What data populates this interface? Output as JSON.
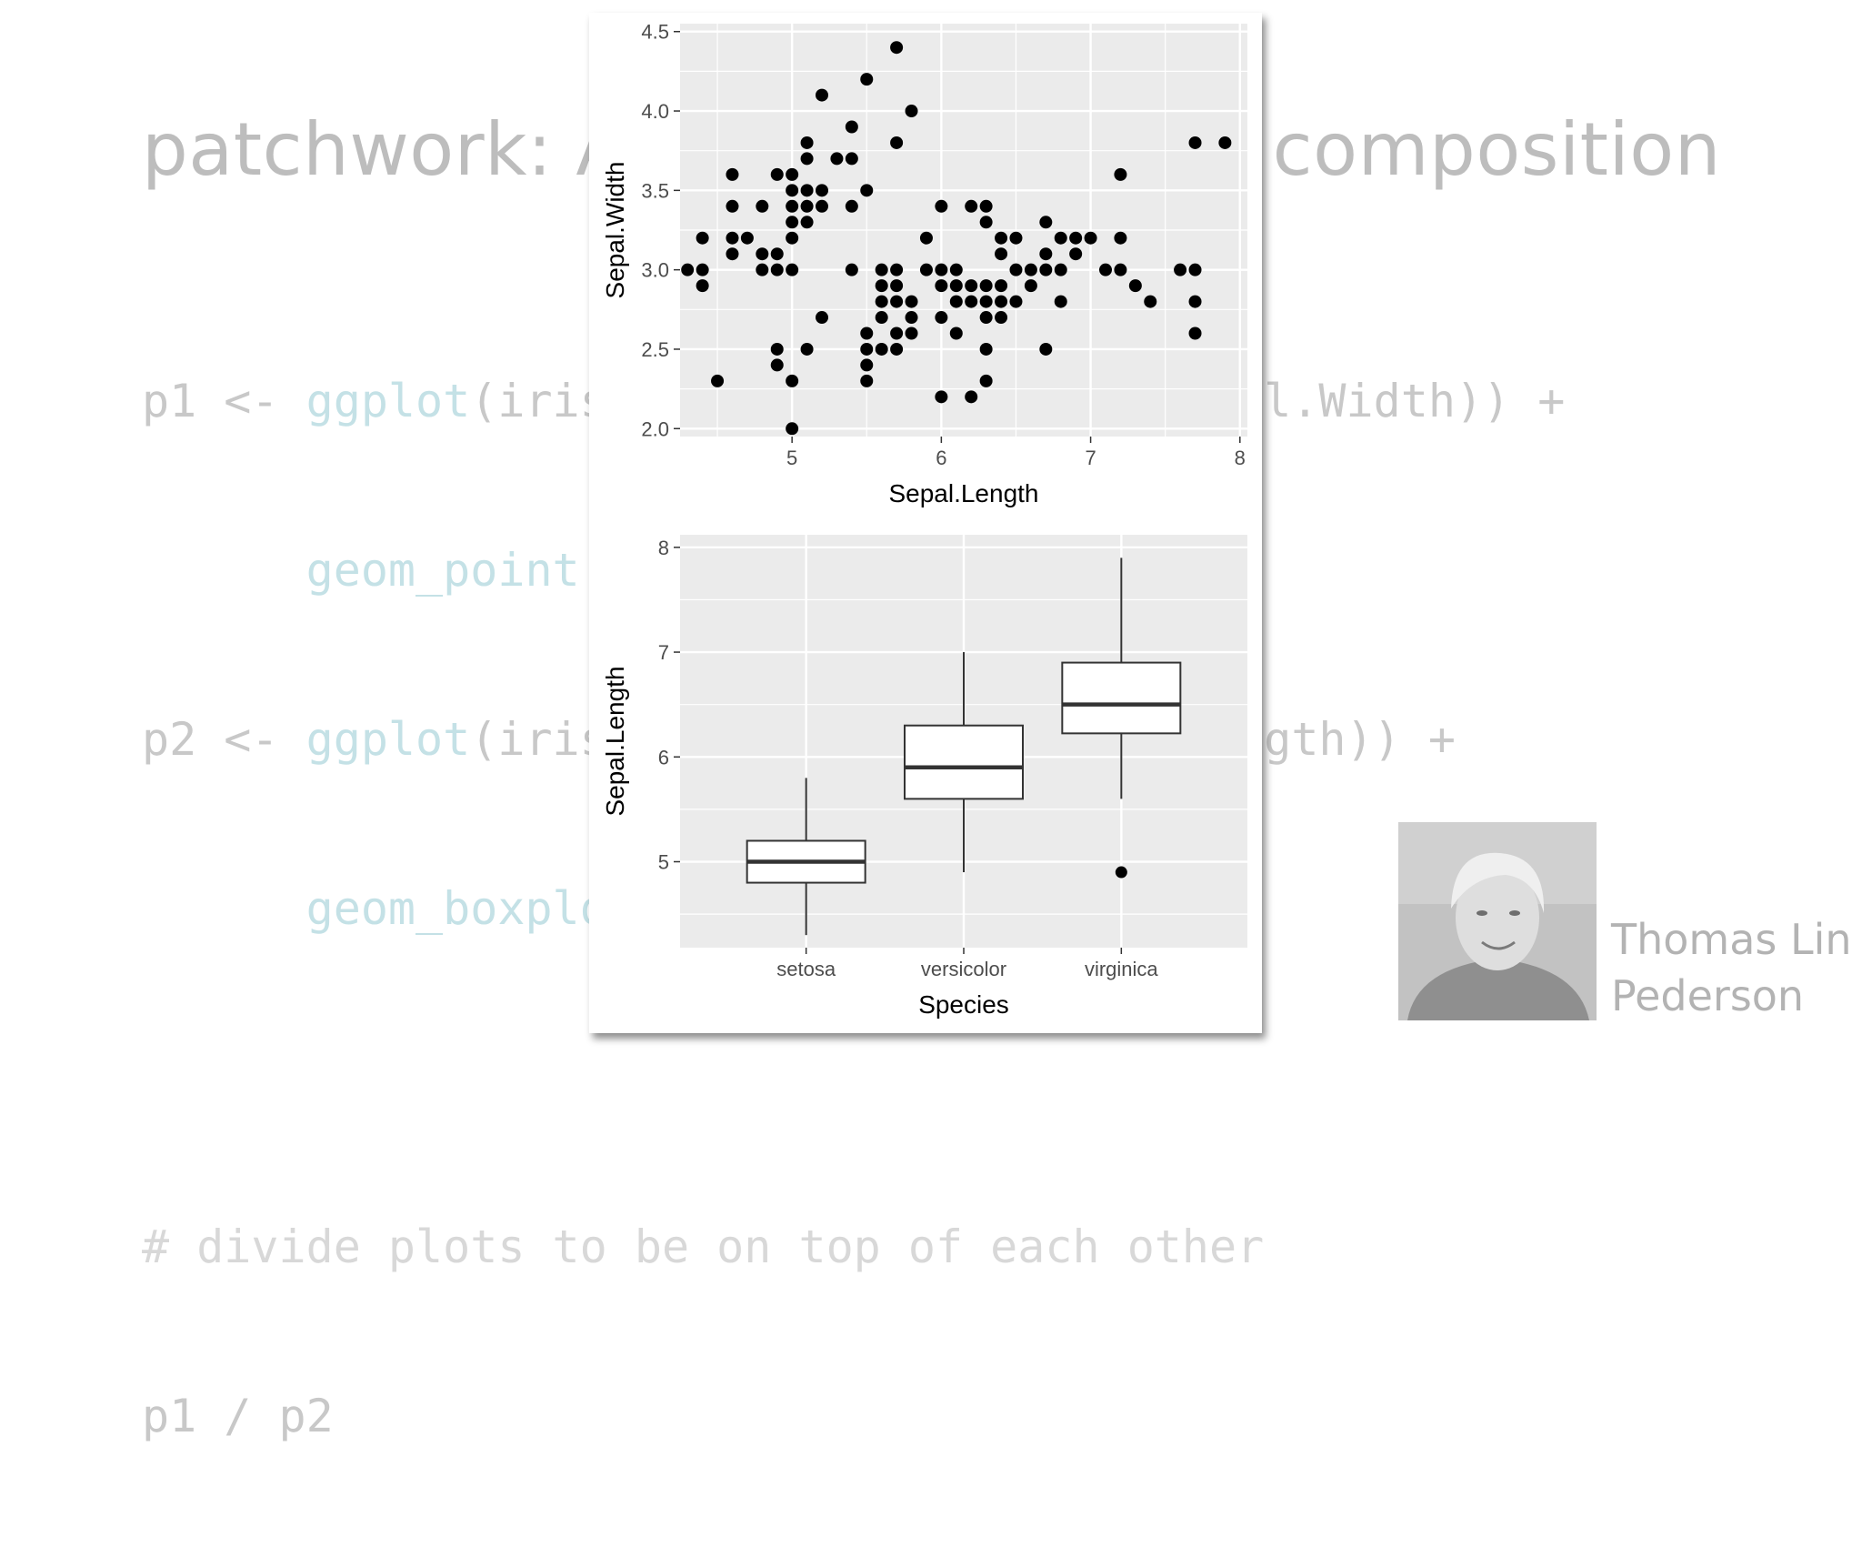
{
  "slide": {
    "title": "patchwork: A grammar of plot composition",
    "code": {
      "l1_a": "p1 <- ",
      "l1_fn": "ggplot",
      "l1_b": "(iris, aes(Sepal.Length, Sepal.Width)) +",
      "l2_fn": "geom_point",
      "l2_b": "()",
      "l3_a": "p2 <- ",
      "l3_fn": "ggplot",
      "l3_b": "(iris, aes(Species, Sepal.Length)) +",
      "l4_fn": "geom_boxplot",
      "l4_b": "()",
      "l5": "# divide plots to be on top of each other",
      "l6": "p1 / p2"
    },
    "author_line1": "Thomas Lin",
    "author_line2": "Pederson"
  },
  "colors": {
    "panel_bg": "#ebebeb",
    "grid": "#ffffff",
    "point": "#000000",
    "box_fill": "#ffffff",
    "box_line": "#333333",
    "axis_text": "#4d4d4d"
  },
  "chart_data": [
    {
      "type": "scatter",
      "xlabel": "Sepal.Length",
      "ylabel": "Sepal.Width",
      "xlim": [
        4.25,
        8.05
      ],
      "ylim": [
        1.95,
        4.55
      ],
      "xticks": [
        5,
        6,
        7,
        8
      ],
      "yticks": [
        2.0,
        2.5,
        3.0,
        3.5,
        4.0,
        4.5
      ],
      "xtick_labels": [
        "5",
        "6",
        "7",
        "8"
      ],
      "ytick_labels": [
        "2.0",
        "2.5",
        "3.0",
        "3.5",
        "4.0",
        "4.5"
      ],
      "grid": true,
      "points": [
        [
          4.3,
          3.0
        ],
        [
          4.4,
          2.9
        ],
        [
          4.4,
          3.0
        ],
        [
          4.4,
          3.2
        ],
        [
          4.5,
          2.3
        ],
        [
          4.6,
          3.1
        ],
        [
          4.6,
          3.2
        ],
        [
          4.6,
          3.4
        ],
        [
          4.6,
          3.6
        ],
        [
          4.7,
          3.2
        ],
        [
          4.8,
          3.0
        ],
        [
          4.8,
          3.1
        ],
        [
          4.8,
          3.4
        ],
        [
          4.9,
          2.4
        ],
        [
          4.9,
          2.5
        ],
        [
          4.9,
          3.0
        ],
        [
          4.9,
          3.1
        ],
        [
          4.9,
          3.6
        ],
        [
          5.0,
          2.0
        ],
        [
          5.0,
          2.3
        ],
        [
          5.0,
          3.0
        ],
        [
          5.0,
          3.2
        ],
        [
          5.0,
          3.3
        ],
        [
          5.0,
          3.4
        ],
        [
          5.0,
          3.5
        ],
        [
          5.0,
          3.6
        ],
        [
          5.1,
          2.5
        ],
        [
          5.1,
          3.3
        ],
        [
          5.1,
          3.4
        ],
        [
          5.1,
          3.5
        ],
        [
          5.1,
          3.7
        ],
        [
          5.1,
          3.8
        ],
        [
          5.2,
          2.7
        ],
        [
          5.2,
          3.4
        ],
        [
          5.2,
          3.5
        ],
        [
          5.2,
          4.1
        ],
        [
          5.3,
          3.7
        ],
        [
          5.4,
          3.0
        ],
        [
          5.4,
          3.4
        ],
        [
          5.4,
          3.7
        ],
        [
          5.4,
          3.9
        ],
        [
          5.5,
          2.3
        ],
        [
          5.5,
          2.4
        ],
        [
          5.5,
          2.5
        ],
        [
          5.5,
          2.6
        ],
        [
          5.5,
          3.5
        ],
        [
          5.5,
          4.2
        ],
        [
          5.6,
          2.5
        ],
        [
          5.6,
          2.7
        ],
        [
          5.6,
          2.8
        ],
        [
          5.6,
          2.9
        ],
        [
          5.6,
          3.0
        ],
        [
          5.7,
          2.5
        ],
        [
          5.7,
          2.6
        ],
        [
          5.7,
          2.8
        ],
        [
          5.7,
          2.9
        ],
        [
          5.7,
          3.0
        ],
        [
          5.7,
          3.8
        ],
        [
          5.7,
          4.4
        ],
        [
          5.8,
          2.6
        ],
        [
          5.8,
          2.7
        ],
        [
          5.8,
          2.8
        ],
        [
          5.8,
          4.0
        ],
        [
          5.9,
          3.0
        ],
        [
          5.9,
          3.2
        ],
        [
          6.0,
          2.2
        ],
        [
          6.0,
          2.7
        ],
        [
          6.0,
          2.9
        ],
        [
          6.0,
          3.0
        ],
        [
          6.0,
          3.4
        ],
        [
          6.1,
          2.6
        ],
        [
          6.1,
          2.8
        ],
        [
          6.1,
          2.9
        ],
        [
          6.1,
          3.0
        ],
        [
          6.2,
          2.2
        ],
        [
          6.2,
          2.8
        ],
        [
          6.2,
          2.9
        ],
        [
          6.2,
          3.4
        ],
        [
          6.3,
          2.3
        ],
        [
          6.3,
          2.5
        ],
        [
          6.3,
          2.7
        ],
        [
          6.3,
          2.8
        ],
        [
          6.3,
          2.9
        ],
        [
          6.3,
          3.3
        ],
        [
          6.3,
          3.4
        ],
        [
          6.4,
          2.7
        ],
        [
          6.4,
          2.8
        ],
        [
          6.4,
          2.9
        ],
        [
          6.4,
          3.1
        ],
        [
          6.4,
          3.2
        ],
        [
          6.5,
          2.8
        ],
        [
          6.5,
          3.0
        ],
        [
          6.5,
          3.2
        ],
        [
          6.6,
          2.9
        ],
        [
          6.6,
          3.0
        ],
        [
          6.7,
          2.5
        ],
        [
          6.7,
          3.0
        ],
        [
          6.7,
          3.1
        ],
        [
          6.7,
          3.3
        ],
        [
          6.8,
          2.8
        ],
        [
          6.8,
          3.0
        ],
        [
          6.8,
          3.2
        ],
        [
          6.9,
          3.1
        ],
        [
          6.9,
          3.2
        ],
        [
          7.0,
          3.2
        ],
        [
          7.1,
          3.0
        ],
        [
          7.2,
          3.0
        ],
        [
          7.2,
          3.2
        ],
        [
          7.2,
          3.6
        ],
        [
          7.3,
          2.9
        ],
        [
          7.4,
          2.8
        ],
        [
          7.6,
          3.0
        ],
        [
          7.7,
          2.6
        ],
        [
          7.7,
          2.8
        ],
        [
          7.7,
          3.0
        ],
        [
          7.7,
          3.8
        ],
        [
          7.9,
          3.8
        ]
      ]
    },
    {
      "type": "box",
      "xlabel": "Species",
      "ylabel": "Sepal.Length",
      "categories": [
        "setosa",
        "versicolor",
        "virginica"
      ],
      "ylim": [
        4.18,
        8.12
      ],
      "yticks": [
        5,
        6,
        7,
        8
      ],
      "ytick_labels": [
        "5",
        "6",
        "7",
        "8"
      ],
      "grid": true,
      "boxes": [
        {
          "min": 4.3,
          "q1": 4.8,
          "median": 5.0,
          "q3": 5.2,
          "max": 5.8,
          "outliers": []
        },
        {
          "min": 4.9,
          "q1": 5.6,
          "median": 5.9,
          "q3": 6.3,
          "max": 7.0,
          "outliers": []
        },
        {
          "min": 5.6,
          "q1": 6.225,
          "median": 6.5,
          "q3": 6.9,
          "max": 7.9,
          "outliers": [
            4.9
          ]
        }
      ]
    }
  ]
}
